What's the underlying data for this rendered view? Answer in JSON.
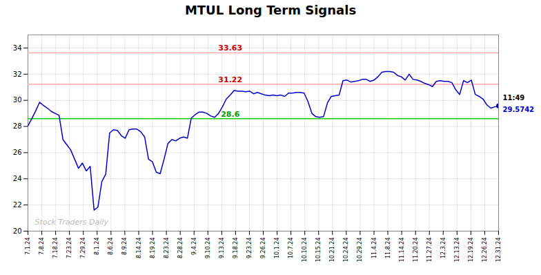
{
  "chart_data": {
    "type": "line",
    "title": "MTUL Long Term Signals",
    "color": "#0000cc",
    "grid": true,
    "values": [
      28.05,
      28.6,
      29.2,
      29.85,
      29.6,
      29.4,
      29.15,
      29.0,
      28.85,
      27.0,
      26.6,
      26.2,
      25.5,
      24.8,
      25.2,
      24.6,
      24.95,
      21.6,
      21.85,
      23.8,
      24.35,
      27.5,
      27.75,
      27.7,
      27.3,
      27.1,
      27.75,
      27.8,
      27.8,
      27.6,
      27.2,
      25.5,
      25.3,
      24.5,
      24.4,
      25.5,
      26.7,
      27.0,
      26.9,
      27.1,
      27.2,
      27.1,
      28.65,
      28.9,
      29.1,
      29.1,
      29.0,
      28.8,
      28.7,
      29.0,
      29.5,
      30.1,
      30.4,
      30.75,
      30.7,
      30.7,
      30.65,
      30.7,
      30.5,
      30.6,
      30.5,
      30.4,
      30.35,
      30.4,
      30.35,
      30.4,
      30.3,
      30.55,
      30.55,
      30.6,
      30.6,
      30.55,
      29.9,
      29.0,
      28.75,
      28.7,
      28.75,
      29.8,
      30.3,
      30.35,
      30.4,
      31.5,
      31.55,
      31.4,
      31.45,
      31.5,
      31.6,
      31.6,
      31.45,
      31.55,
      31.8,
      32.15,
      32.2,
      32.2,
      32.15,
      31.9,
      31.8,
      31.55,
      32.0,
      31.6,
      31.55,
      31.45,
      31.3,
      31.2,
      31.05,
      31.45,
      31.5,
      31.45,
      31.45,
      31.35,
      30.8,
      30.45,
      31.5,
      31.35,
      31.55,
      30.45,
      30.3,
      30.1,
      29.65,
      29.4,
      29.5,
      29.57
    ],
    "xlim": [
      0,
      121
    ],
    "xticks": [
      {
        "value": 0,
        "label": "7.1.24"
      },
      {
        "value": 3.56,
        "label": "7.8.24"
      },
      {
        "value": 7.12,
        "label": "7.18.24"
      },
      {
        "value": 10.68,
        "label": "7.23.24"
      },
      {
        "value": 14.24,
        "label": "7.29.24"
      },
      {
        "value": 17.79,
        "label": "8.1.24"
      },
      {
        "value": 21.35,
        "label": "8.6.24"
      },
      {
        "value": 24.91,
        "label": "8.9.24"
      },
      {
        "value": 28.47,
        "label": "8.14.24"
      },
      {
        "value": 32.03,
        "label": "8.19.24"
      },
      {
        "value": 35.59,
        "label": "8.23.24"
      },
      {
        "value": 39.15,
        "label": "8.28.24"
      },
      {
        "value": 42.71,
        "label": "9.4.24"
      },
      {
        "value": 46.26,
        "label": "9.10.24"
      },
      {
        "value": 49.82,
        "label": "9.13.24"
      },
      {
        "value": 53.38,
        "label": "9.18.24"
      },
      {
        "value": 56.94,
        "label": "9.23.24"
      },
      {
        "value": 60.5,
        "label": "9.26.24"
      },
      {
        "value": 64.06,
        "label": "10.1.24"
      },
      {
        "value": 67.62,
        "label": "10.7.24"
      },
      {
        "value": 71.18,
        "label": "10.10.24"
      },
      {
        "value": 74.74,
        "label": "10.15.24"
      },
      {
        "value": 78.29,
        "label": "10.21.24"
      },
      {
        "value": 81.85,
        "label": "10.24.24"
      },
      {
        "value": 85.41,
        "label": "10.29.24"
      },
      {
        "value": 88.97,
        "label": "11.4.24"
      },
      {
        "value": 92.53,
        "label": "11.8.24"
      },
      {
        "value": 96.09,
        "label": "11.14.24"
      },
      {
        "value": 99.65,
        "label": "11.20.24"
      },
      {
        "value": 103.21,
        "label": "11.27.24"
      },
      {
        "value": 106.76,
        "label": "12.3.24"
      },
      {
        "value": 110.32,
        "label": "12.13.24"
      },
      {
        "value": 113.88,
        "label": "12.19.24"
      },
      {
        "value": 117.44,
        "label": "12.26.24"
      },
      {
        "value": 121,
        "label": "12.31.24"
      }
    ],
    "ylim": [
      20,
      35
    ],
    "yticks": [
      20,
      22,
      24,
      26,
      28,
      30,
      32,
      34
    ],
    "reference_lines": [
      {
        "y": 28.6,
        "label": "28.6",
        "color": "#00cc00",
        "label_color": "#009900"
      },
      {
        "y": 31.22,
        "label": "31.22",
        "color": "#ffaaaa",
        "label_color": "#cc0000"
      },
      {
        "y": 33.63,
        "label": "33.63",
        "color": "#ffaaaa",
        "label_color": "#cc0000"
      }
    ],
    "last_point": {
      "time_label": "11:49",
      "value_label": "29.5742",
      "color": "#0000cc"
    },
    "watermark": "Stock Traders Daily",
    "watermark_color": "#bbbbbb"
  }
}
